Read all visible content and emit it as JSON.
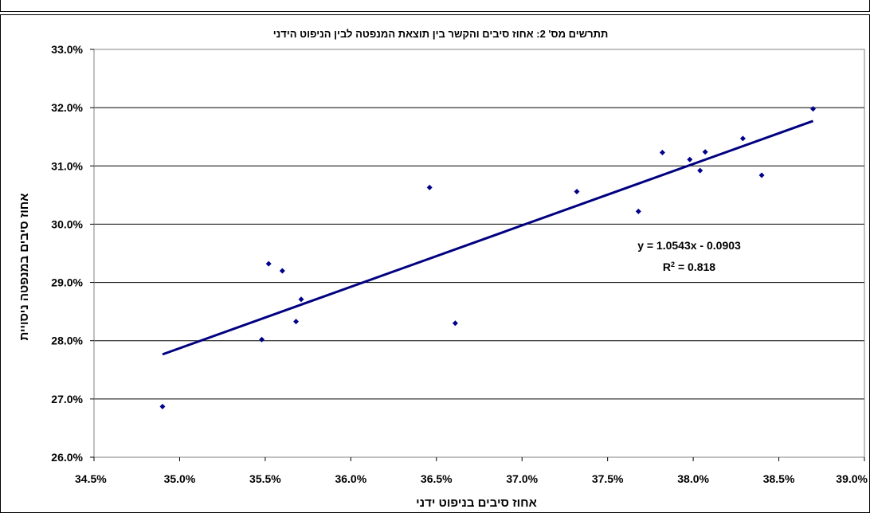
{
  "chart_data": {
    "type": "scatter",
    "title": "תתרשים מס' 2: אחוז סיבים והקשר בין תוצאת המנפטה לבין הניפוט הידני",
    "xlabel": "אחוז סיבים בניפוט ידני",
    "ylabel": "אחוז סיבים במנפטה ניסויית",
    "xlim": [
      0.345,
      0.39
    ],
    "ylim": [
      0.26,
      0.33
    ],
    "x_ticks": [
      "34.5%",
      "35.0%",
      "35.5%",
      "36.0%",
      "36.5%",
      "37.0%",
      "37.5%",
      "38.0%",
      "38.5%",
      "39.0%"
    ],
    "y_ticks": [
      "26.0%",
      "27.0%",
      "28.0%",
      "29.0%",
      "30.0%",
      "31.0%",
      "32.0%",
      "33.0%"
    ],
    "grid": "horizontal",
    "marker_color": "#00008B",
    "trendline_color": "#000080",
    "points": [
      {
        "x": 0.349,
        "y": 0.2687
      },
      {
        "x": 0.3548,
        "y": 0.2802
      },
      {
        "x": 0.3552,
        "y": 0.2932
      },
      {
        "x": 0.356,
        "y": 0.292
      },
      {
        "x": 0.3568,
        "y": 0.2833
      },
      {
        "x": 0.3571,
        "y": 0.2871
      },
      {
        "x": 0.3646,
        "y": 0.3063
      },
      {
        "x": 0.3661,
        "y": 0.283
      },
      {
        "x": 0.3732,
        "y": 0.3056
      },
      {
        "x": 0.3768,
        "y": 0.3022
      },
      {
        "x": 0.3782,
        "y": 0.3123
      },
      {
        "x": 0.3798,
        "y": 0.3111
      },
      {
        "x": 0.3804,
        "y": 0.3092
      },
      {
        "x": 0.3807,
        "y": 0.3124
      },
      {
        "x": 0.3829,
        "y": 0.3147
      },
      {
        "x": 0.384,
        "y": 0.3084
      },
      {
        "x": 0.387,
        "y": 0.3198
      }
    ],
    "trendline": {
      "type": "linear",
      "slope": 1.0543,
      "intercept": -0.0903,
      "x_range": [
        0.349,
        0.387
      ],
      "equation": "y = 1.0543x - 0.0903",
      "r2_prefix": "R",
      "r2_sup": "2",
      "r2_suffix": " = 0.818"
    }
  }
}
